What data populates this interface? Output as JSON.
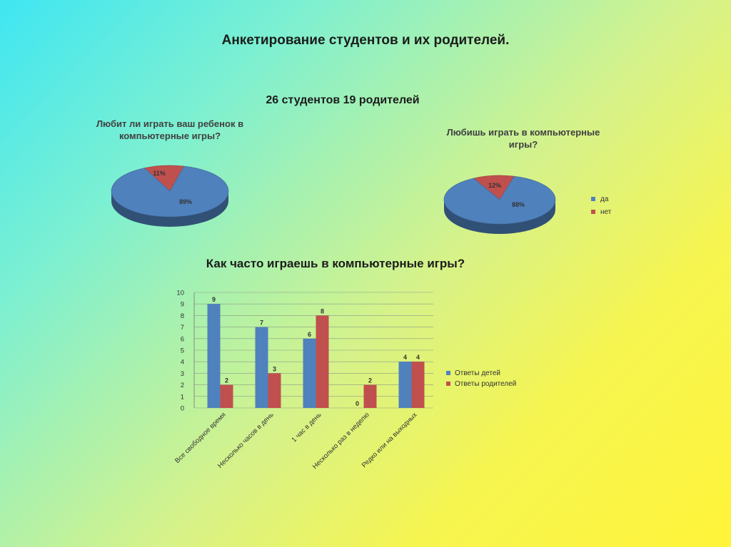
{
  "slide": {
    "title": "Анкетирование студентов и их родителей.",
    "subtitle": "26 студентов 19 родителей"
  },
  "colors": {
    "blue": "#4f81bd",
    "red": "#c0504d"
  },
  "chart_data": [
    {
      "type": "pie",
      "title": "Любит ли играть ваш ребенок в компьютерные игры?",
      "slices": [
        {
          "name": "да",
          "value": 89,
          "label": "89%"
        },
        {
          "name": "нет",
          "value": 11,
          "label": "11%"
        }
      ]
    },
    {
      "type": "pie",
      "title": "Любишь играть в компьютерные игры?",
      "slices": [
        {
          "name": "да",
          "value": 88,
          "label": "88%"
        },
        {
          "name": "нет",
          "value": 12,
          "label": "12%"
        }
      ],
      "legend": [
        "да",
        "нет"
      ],
      "legend_position": "right"
    },
    {
      "type": "bar",
      "title": "Как часто играешь в компьютерные игры?",
      "categories": [
        "Все свободное время",
        "Несколько часов в день",
        "1 час в день",
        "Несколько раз в неделю",
        "Редко или на выходных"
      ],
      "series": [
        {
          "name": "Ответы детей",
          "values": [
            9,
            7,
            6,
            0,
            4
          ]
        },
        {
          "name": "Ответы родителей",
          "values": [
            2,
            3,
            8,
            2,
            4
          ]
        }
      ],
      "ylim": [
        0,
        10
      ],
      "yticks": [
        "0",
        "1",
        "2",
        "3",
        "4",
        "5",
        "6",
        "7",
        "8",
        "9",
        "10"
      ],
      "grid": true,
      "legend_position": "right"
    }
  ]
}
